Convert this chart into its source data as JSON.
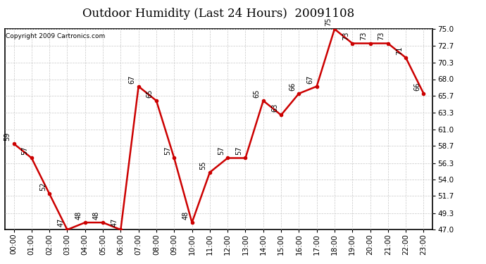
{
  "title": "Outdoor Humidity (Last 24 Hours)  20091108",
  "copyright": "Copyright 2009 Cartronics.com",
  "x_labels": [
    "00:00",
    "01:00",
    "02:00",
    "03:00",
    "04:00",
    "05:00",
    "06:00",
    "07:00",
    "08:00",
    "09:00",
    "10:00",
    "11:00",
    "12:00",
    "13:00",
    "14:00",
    "15:00",
    "16:00",
    "17:00",
    "18:00",
    "19:00",
    "20:00",
    "21:00",
    "22:00",
    "23:00"
  ],
  "x_values": [
    0,
    1,
    2,
    3,
    4,
    5,
    6,
    7,
    8,
    9,
    10,
    11,
    12,
    13,
    14,
    15,
    16,
    17,
    18,
    19,
    20,
    21,
    22,
    23
  ],
  "y_values": [
    59,
    57,
    52,
    47,
    48,
    48,
    47,
    67,
    65,
    57,
    48,
    55,
    57,
    57,
    65,
    63,
    66,
    67,
    75,
    73,
    73,
    73,
    71,
    66
  ],
  "ylim_min": 47.0,
  "ylim_max": 75.0,
  "yticks": [
    47.0,
    49.3,
    51.7,
    54.0,
    56.3,
    58.7,
    61.0,
    63.3,
    65.7,
    68.0,
    70.3,
    72.7,
    75.0
  ],
  "ytick_labels": [
    "47.0",
    "49.3",
    "51.7",
    "54.0",
    "56.3",
    "58.7",
    "61.0",
    "63.3",
    "65.7",
    "68.0",
    "70.3",
    "72.7",
    "75.0"
  ],
  "line_color": "#cc0000",
  "marker_color": "#cc0000",
  "bg_color": "#ffffff",
  "grid_color": "#c8c8c8",
  "title_fontsize": 12,
  "tick_fontsize": 7.5,
  "annot_fontsize": 7,
  "copyright_fontsize": 6.5
}
